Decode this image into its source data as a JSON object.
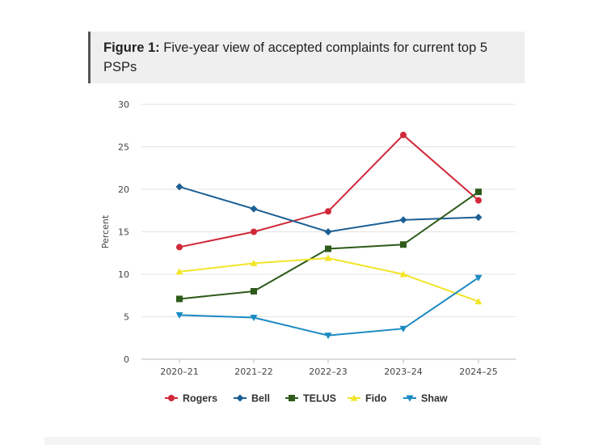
{
  "figure": {
    "label": "Figure 1:",
    "caption": "Five-year view of accepted complaints for current top 5 PSPs"
  },
  "chart_data": {
    "type": "line",
    "title": "Five-year view of accepted complaints for current top 5 PSPs",
    "xlabel": "",
    "ylabel": "Percent",
    "categories": [
      "2020–21",
      "2021–22",
      "2022–23",
      "2023–24",
      "2024–25"
    ],
    "ylim": [
      0,
      30
    ],
    "yticks": [
      0,
      5,
      10,
      15,
      20,
      25,
      30
    ],
    "grid": true,
    "legend_position": "bottom",
    "series": [
      {
        "name": "Rogers",
        "values": [
          13.2,
          15.0,
          17.4,
          26.4,
          18.7
        ],
        "color": "#d1293a",
        "marker": "circle"
      },
      {
        "name": "Bell",
        "values": [
          20.3,
          17.7,
          15.0,
          16.4,
          16.7
        ],
        "color": "#1b5f94",
        "marker": "diamond"
      },
      {
        "name": "TELUS",
        "values": [
          7.1,
          8.0,
          13.0,
          13.5,
          19.7
        ],
        "color": "#2e5b1a",
        "marker": "square"
      },
      {
        "name": "Fido",
        "values": [
          10.3,
          11.3,
          11.9,
          10.0,
          6.8
        ],
        "color": "#f2e528",
        "marker": "triangle-up"
      },
      {
        "name": "Shaw",
        "values": [
          5.2,
          4.9,
          2.8,
          3.6,
          9.6
        ],
        "color": "#1a8ac2",
        "marker": "triangle-down"
      }
    ]
  }
}
